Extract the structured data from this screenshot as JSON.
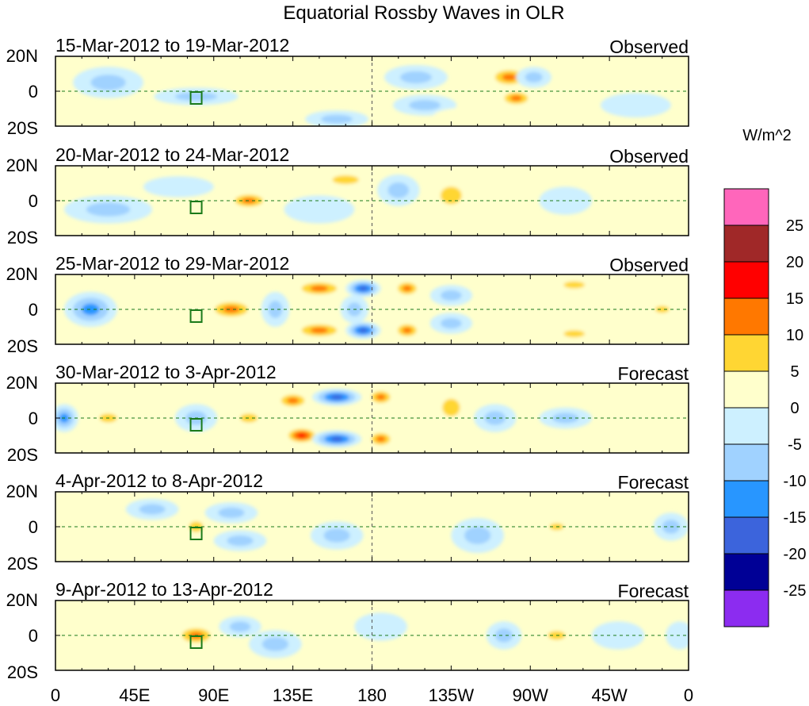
{
  "chart_data": {
    "type": "heatmap",
    "title": "Equatorial Rossby Waves in OLR",
    "colorbar": {
      "units": "W/m^2",
      "tick_labels": [
        "25",
        "20",
        "15",
        "10",
        "5",
        "0",
        "-5",
        "-10",
        "-15",
        "-20",
        "-25"
      ],
      "colors": [
        "#ff66bb",
        "#a02828",
        "#ff0000",
        "#ff7800",
        "#ffd633",
        "#ffffcc",
        "#cdf0ff",
        "#a0d2ff",
        "#2896ff",
        "#3c64dc",
        "#000096",
        "#8c2cf0"
      ]
    },
    "x_axis": {
      "tick_labels": [
        "0",
        "45E",
        "90E",
        "135E",
        "180",
        "135W",
        "90W",
        "45W",
        "0"
      ],
      "range_deg_east": [
        0,
        360
      ]
    },
    "y_axis": {
      "tick_labels": [
        "20N",
        "0",
        "20S"
      ],
      "range_deg": [
        20,
        -20
      ]
    },
    "panels": [
      {
        "period": "15-Mar-2012 to 19-Mar-2012",
        "status": "Observed",
        "anomalies": [
          {
            "lon": 80,
            "lat": -3,
            "v": -10,
            "rx": 24,
            "ry": 5
          },
          {
            "lon": 205,
            "lat": 8,
            "v": -10,
            "rx": 18,
            "ry": 7
          },
          {
            "lon": 210,
            "lat": -8,
            "v": -8,
            "rx": 18,
            "ry": 6
          },
          {
            "lon": 258,
            "lat": 8,
            "v": 15,
            "rx": 12,
            "ry": 6
          },
          {
            "lon": 262,
            "lat": -4,
            "v": 15,
            "rx": 10,
            "ry": 5
          },
          {
            "lon": 272,
            "lat": 8,
            "v": -8,
            "rx": 10,
            "ry": 6
          },
          {
            "lon": 160,
            "lat": -16,
            "v": -10,
            "rx": 18,
            "ry": 5
          },
          {
            "lon": 120,
            "lat": 6,
            "v": 5,
            "rx": 20,
            "ry": 6
          },
          {
            "lon": 30,
            "lat": 5,
            "v": -8,
            "rx": 20,
            "ry": 9
          },
          {
            "lon": 240,
            "lat": -14,
            "v": 5,
            "rx": 25,
            "ry": 5
          },
          {
            "lon": 345,
            "lat": 10,
            "v": 5,
            "rx": 15,
            "ry": 6
          },
          {
            "lon": 330,
            "lat": -8,
            "v": -5,
            "rx": 20,
            "ry": 7
          }
        ]
      },
      {
        "period": "20-Mar-2012 to 24-Mar-2012",
        "status": "Observed",
        "anomalies": [
          {
            "lon": 110,
            "lat": 0,
            "v": 15,
            "rx": 12,
            "ry": 5
          },
          {
            "lon": 150,
            "lat": -5,
            "v": -5,
            "rx": 20,
            "ry": 8
          },
          {
            "lon": 165,
            "lat": 12,
            "v": 10,
            "rx": 15,
            "ry": 5
          },
          {
            "lon": 195,
            "lat": 6,
            "v": -10,
            "rx": 12,
            "ry": 9
          },
          {
            "lon": 225,
            "lat": 3,
            "v": 10,
            "rx": 12,
            "ry": 10
          },
          {
            "lon": 255,
            "lat": 8,
            "v": 5,
            "rx": 15,
            "ry": 7
          },
          {
            "lon": 255,
            "lat": -8,
            "v": 5,
            "rx": 15,
            "ry": 6
          },
          {
            "lon": 290,
            "lat": 0,
            "v": -5,
            "rx": 15,
            "ry": 8
          },
          {
            "lon": 320,
            "lat": 10,
            "v": 5,
            "rx": 20,
            "ry": 6
          },
          {
            "lon": 30,
            "lat": -5,
            "v": -8,
            "rx": 25,
            "ry": 8
          },
          {
            "lon": 180,
            "lat": -15,
            "v": 5,
            "rx": 20,
            "ry": 5
          },
          {
            "lon": 70,
            "lat": 8,
            "v": -5,
            "rx": 20,
            "ry": 6
          }
        ]
      },
      {
        "period": "25-Mar-2012 to 29-Mar-2012",
        "status": "Observed",
        "anomalies": [
          {
            "lon": 100,
            "lat": 0,
            "v": 15,
            "rx": 14,
            "ry": 6
          },
          {
            "lon": 150,
            "lat": 12,
            "v": 15,
            "rx": 15,
            "ry": 5
          },
          {
            "lon": 150,
            "lat": -12,
            "v": 15,
            "rx": 15,
            "ry": 5
          },
          {
            "lon": 175,
            "lat": 12,
            "v": -20,
            "rx": 10,
            "ry": 5
          },
          {
            "lon": 175,
            "lat": -12,
            "v": -20,
            "rx": 10,
            "ry": 5
          },
          {
            "lon": 170,
            "lat": 0,
            "v": -10,
            "rx": 8,
            "ry": 8
          },
          {
            "lon": 200,
            "lat": 12,
            "v": 12,
            "rx": 8,
            "ry": 5
          },
          {
            "lon": 200,
            "lat": -12,
            "v": 12,
            "rx": 8,
            "ry": 5
          },
          {
            "lon": 225,
            "lat": 8,
            "v": -8,
            "rx": 12,
            "ry": 6
          },
          {
            "lon": 225,
            "lat": -8,
            "v": -8,
            "rx": 12,
            "ry": 6
          },
          {
            "lon": 295,
            "lat": 14,
            "v": 10,
            "rx": 12,
            "ry": 4
          },
          {
            "lon": 295,
            "lat": -14,
            "v": 10,
            "rx": 12,
            "ry": 4
          },
          {
            "lon": 20,
            "lat": 0,
            "v": -12,
            "rx": 15,
            "ry": 10
          },
          {
            "lon": 345,
            "lat": 0,
            "v": 10,
            "rx": 8,
            "ry": 4
          },
          {
            "lon": 125,
            "lat": 0,
            "v": -8,
            "rx": 8,
            "ry": 10
          },
          {
            "lon": 260,
            "lat": 0,
            "v": 5,
            "rx": 15,
            "ry": 6
          }
        ]
      },
      {
        "period": "30-Mar-2012 to 3-Apr-2012",
        "status": "Forecast",
        "anomalies": [
          {
            "lon": 140,
            "lat": -10,
            "v": 18,
            "rx": 10,
            "ry": 5
          },
          {
            "lon": 135,
            "lat": 10,
            "v": 12,
            "rx": 10,
            "ry": 5
          },
          {
            "lon": 160,
            "lat": 12,
            "v": -20,
            "rx": 14,
            "ry": 5
          },
          {
            "lon": 160,
            "lat": -12,
            "v": -18,
            "rx": 14,
            "ry": 5
          },
          {
            "lon": 185,
            "lat": 12,
            "v": 12,
            "rx": 8,
            "ry": 5
          },
          {
            "lon": 185,
            "lat": -12,
            "v": 12,
            "rx": 8,
            "ry": 5
          },
          {
            "lon": 225,
            "lat": 6,
            "v": 10,
            "rx": 10,
            "ry": 10
          },
          {
            "lon": 5,
            "lat": 0,
            "v": -15,
            "rx": 8,
            "ry": 8
          },
          {
            "lon": 30,
            "lat": 0,
            "v": 10,
            "rx": 10,
            "ry": 5
          },
          {
            "lon": 110,
            "lat": 0,
            "v": 10,
            "rx": 10,
            "ry": 5
          },
          {
            "lon": 250,
            "lat": 0,
            "v": -8,
            "rx": 12,
            "ry": 8
          },
          {
            "lon": 290,
            "lat": 0,
            "v": -8,
            "rx": 15,
            "ry": 6
          },
          {
            "lon": 330,
            "lat": 0,
            "v": 5,
            "rx": 15,
            "ry": 6
          },
          {
            "lon": 80,
            "lat": 0,
            "v": -8,
            "rx": 12,
            "ry": 8
          }
        ]
      },
      {
        "period": "4-Apr-2012 to 8-Apr-2012",
        "status": "Forecast",
        "anomalies": [
          {
            "lon": 80,
            "lat": 0,
            "v": 10,
            "rx": 8,
            "ry": 6
          },
          {
            "lon": 100,
            "lat": 8,
            "v": -10,
            "rx": 15,
            "ry": 6
          },
          {
            "lon": 105,
            "lat": -8,
            "v": -10,
            "rx": 15,
            "ry": 6
          },
          {
            "lon": 135,
            "lat": 0,
            "v": 5,
            "rx": 10,
            "ry": 10
          },
          {
            "lon": 160,
            "lat": -5,
            "v": -8,
            "rx": 15,
            "ry": 8
          },
          {
            "lon": 200,
            "lat": 5,
            "v": 5,
            "rx": 25,
            "ry": 10
          },
          {
            "lon": 240,
            "lat": -5,
            "v": -8,
            "rx": 15,
            "ry": 10
          },
          {
            "lon": 285,
            "lat": 0,
            "v": 10,
            "rx": 8,
            "ry": 4
          },
          {
            "lon": 310,
            "lat": -8,
            "v": 5,
            "rx": 15,
            "ry": 6
          },
          {
            "lon": 350,
            "lat": 0,
            "v": -10,
            "rx": 10,
            "ry": 8
          },
          {
            "lon": 30,
            "lat": 0,
            "v": 5,
            "rx": 15,
            "ry": 8
          },
          {
            "lon": 55,
            "lat": 10,
            "v": -8,
            "rx": 15,
            "ry": 6
          }
        ]
      },
      {
        "period": "9-Apr-2012 to 13-Apr-2012",
        "status": "Forecast",
        "anomalies": [
          {
            "lon": 80,
            "lat": 0,
            "v": 15,
            "rx": 12,
            "ry": 6
          },
          {
            "lon": 105,
            "lat": 5,
            "v": -10,
            "rx": 12,
            "ry": 6
          },
          {
            "lon": 125,
            "lat": -5,
            "v": -10,
            "rx": 15,
            "ry": 8
          },
          {
            "lon": 155,
            "lat": 0,
            "v": 5,
            "rx": 15,
            "ry": 10
          },
          {
            "lon": 185,
            "lat": 5,
            "v": -5,
            "rx": 15,
            "ry": 8
          },
          {
            "lon": 220,
            "lat": 0,
            "v": 5,
            "rx": 15,
            "ry": 10
          },
          {
            "lon": 255,
            "lat": 0,
            "v": -8,
            "rx": 10,
            "ry": 8
          },
          {
            "lon": 285,
            "lat": 0,
            "v": 10,
            "rx": 10,
            "ry": 5
          },
          {
            "lon": 320,
            "lat": 0,
            "v": -5,
            "rx": 15,
            "ry": 8
          },
          {
            "lon": 30,
            "lat": 0,
            "v": 5,
            "rx": 15,
            "ry": 8
          },
          {
            "lon": 355,
            "lat": 0,
            "v": -5,
            "rx": 8,
            "ry": 8
          }
        ]
      }
    ]
  }
}
